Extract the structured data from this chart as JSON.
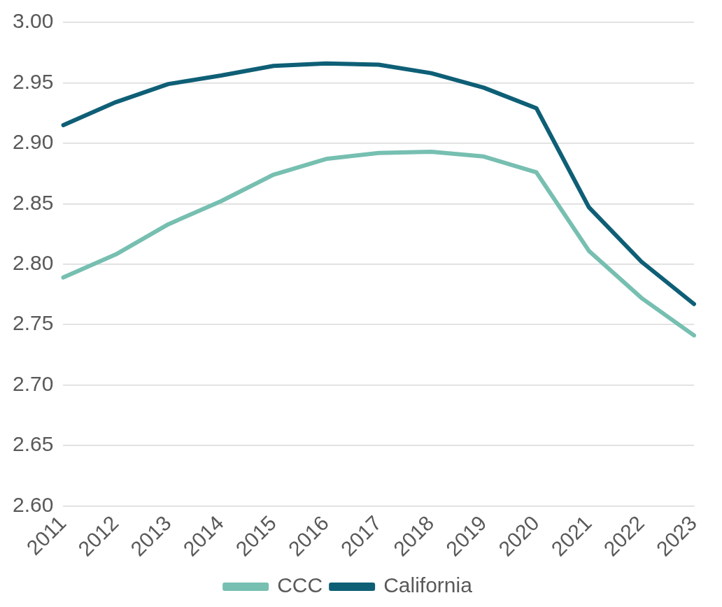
{
  "chart_data": {
    "type": "line",
    "categories": [
      "2011",
      "2012",
      "2013",
      "2014",
      "2015",
      "2016",
      "2017",
      "2018",
      "2019",
      "2020",
      "2021",
      "2022",
      "2023"
    ],
    "series": [
      {
        "name": "CCC",
        "color": "#76bfb1",
        "values": [
          2.789,
          2.808,
          2.833,
          2.852,
          2.874,
          2.887,
          2.892,
          2.893,
          2.889,
          2.876,
          2.811,
          2.772,
          2.741
        ]
      },
      {
        "name": "California",
        "color": "#0e5f76",
        "values": [
          2.915,
          2.934,
          2.949,
          2.956,
          2.964,
          2.966,
          2.965,
          2.958,
          2.946,
          2.929,
          2.847,
          2.802,
          2.767
        ]
      }
    ],
    "ylim": [
      2.6,
      3.0
    ],
    "yticks": [
      {
        "value": 2.6,
        "label": "2.60"
      },
      {
        "value": 2.65,
        "label": "2.65"
      },
      {
        "value": 2.7,
        "label": "2.70"
      },
      {
        "value": 2.75,
        "label": "2.75"
      },
      {
        "value": 2.8,
        "label": "2.80"
      },
      {
        "value": 2.85,
        "label": "2.85"
      },
      {
        "value": 2.9,
        "label": "2.90"
      },
      {
        "value": 2.95,
        "label": "2.95"
      },
      {
        "value": 3.0,
        "label": "3.00"
      }
    ],
    "grid": "y",
    "legend": "bottom",
    "marker": "none",
    "line_style": "solid"
  }
}
